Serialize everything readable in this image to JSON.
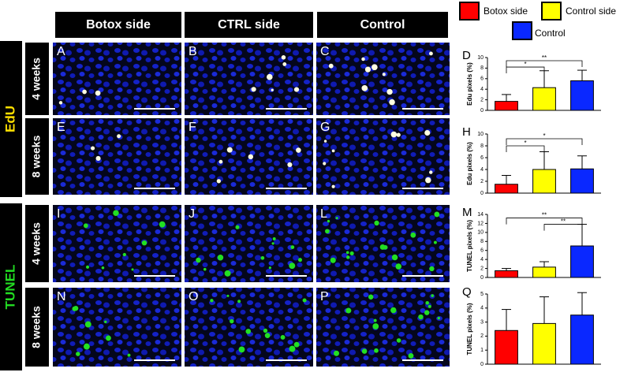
{
  "legend": [
    {
      "name": "Botox side",
      "color": "#ff0000"
    },
    {
      "name": "Control side",
      "color": "#ffff00"
    },
    {
      "name": "Control",
      "color": "#0a28ff"
    }
  ],
  "columns": [
    "Botox side",
    "CTRL side",
    "Control"
  ],
  "groups": [
    {
      "label": "EdU",
      "color": "#ffe000",
      "rows": [
        "4 weeks",
        "8 weeks"
      ],
      "panels": [
        [
          "A",
          "B",
          "C"
        ],
        [
          "E",
          "F",
          "G"
        ]
      ]
    },
    {
      "label": "TUNEL",
      "color": "#22dd22",
      "rows": [
        "4 weeks",
        "8 weeks"
      ],
      "panels": [
        [
          "I",
          "J",
          "L"
        ],
        [
          "N",
          "O",
          "P"
        ]
      ]
    }
  ],
  "chart_data": [
    {
      "type": "bar",
      "label": "D",
      "y_label": "Edu pixels (%)",
      "categories": [
        null,
        null,
        null
      ],
      "values": [
        1.7,
        4.3,
        5.6
      ],
      "errors": [
        1.3,
        3.2,
        2.0
      ],
      "ylim": [
        0,
        10
      ],
      "yticks": [
        0,
        2,
        4,
        6,
        8,
        10
      ],
      "annotations": [
        "*",
        "**"
      ]
    },
    {
      "type": "bar",
      "label": "H",
      "y_label": "Edu pixels (%)",
      "categories": [
        null,
        null,
        null
      ],
      "values": [
        1.5,
        4.0,
        4.1
      ],
      "errors": [
        1.5,
        3.0,
        2.2
      ],
      "ylim": [
        0,
        10
      ],
      "yticks": [
        0,
        2,
        4,
        6,
        8,
        10
      ],
      "annotations": [
        "*",
        "*"
      ]
    },
    {
      "type": "bar",
      "label": "M",
      "y_label": "TUNEL pixels (%)",
      "categories": [
        null,
        null,
        null
      ],
      "values": [
        1.5,
        2.3,
        7.0
      ],
      "errors": [
        0.5,
        1.2,
        4.8
      ],
      "ylim": [
        0,
        14
      ],
      "yticks": [
        0,
        2,
        4,
        6,
        8,
        10,
        12,
        14
      ],
      "annotations": [
        "**",
        "**"
      ]
    },
    {
      "type": "bar",
      "label": "Q",
      "y_label": "TUNEL pixels (%)",
      "categories": [
        null,
        null,
        null
      ],
      "values": [
        2.4,
        2.9,
        3.5
      ],
      "errors": [
        1.5,
        1.9,
        1.6
      ],
      "ylim": [
        0,
        5
      ],
      "yticks": [
        0,
        1,
        2,
        3,
        4,
        5
      ],
      "annotations": []
    }
  ]
}
